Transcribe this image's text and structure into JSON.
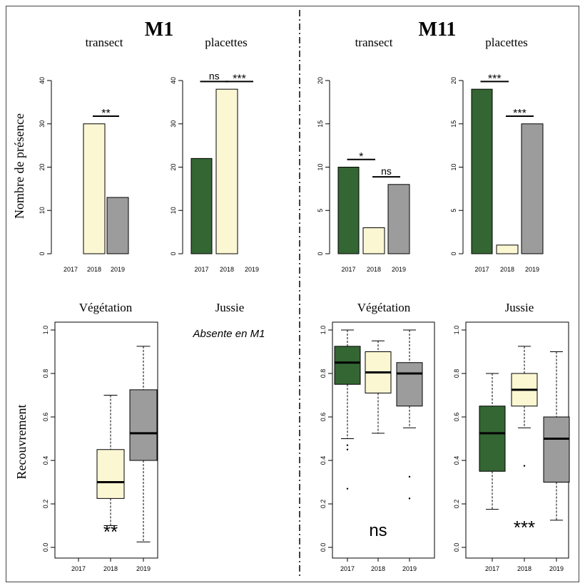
{
  "colors": {
    "2017": "#336633",
    "2018": "#fbf7d3",
    "2019": "#9c9c9c"
  },
  "figure": {
    "site_titles": [
      "M1",
      "M11"
    ],
    "row1_ylabel": "Nombre de présence",
    "row2_ylabel": "Recouvrement",
    "absent_note": "Absente en M1"
  },
  "chart_data": [
    {
      "id": "m1-transect",
      "type": "bar",
      "title": "transect",
      "categories": [
        "2017",
        "2018",
        "2019"
      ],
      "values": [
        0,
        30,
        13
      ],
      "ylim": [
        0,
        40
      ],
      "yticks": [
        0,
        10,
        20,
        30,
        40
      ],
      "significance": [
        {
          "from": 1,
          "to": 2,
          "label": "**"
        }
      ]
    },
    {
      "id": "m1-placettes",
      "type": "bar",
      "title": "placettes",
      "categories": [
        "2017",
        "2018",
        "2019"
      ],
      "values": [
        22,
        38,
        0
      ],
      "ylim": [
        0,
        40
      ],
      "yticks": [
        0,
        10,
        20,
        30,
        40
      ],
      "significance": [
        {
          "from": 0,
          "to": 1,
          "label": "ns"
        },
        {
          "from": 1,
          "to": 2,
          "label": "***"
        }
      ]
    },
    {
      "id": "m11-transect",
      "type": "bar",
      "title": "transect",
      "categories": [
        "2017",
        "2018",
        "2019"
      ],
      "values": [
        10,
        3,
        8
      ],
      "ylim": [
        0,
        20
      ],
      "yticks": [
        0,
        5,
        10,
        15,
        20
      ],
      "significance": [
        {
          "from": 0,
          "to": 1,
          "label": "*"
        },
        {
          "from": 1,
          "to": 2,
          "label": "ns"
        }
      ]
    },
    {
      "id": "m11-placettes",
      "type": "bar",
      "title": "placettes",
      "categories": [
        "2017",
        "2018",
        "2019"
      ],
      "values": [
        19,
        1,
        15
      ],
      "ylim": [
        0,
        20
      ],
      "yticks": [
        0,
        5,
        10,
        15,
        20
      ],
      "significance": [
        {
          "from": 0,
          "to": 1,
          "label": "***"
        },
        {
          "from": 1,
          "to": 2,
          "label": "***"
        }
      ]
    },
    {
      "id": "m1-vegetation",
      "type": "box",
      "title": "Végétation",
      "categories": [
        "2017",
        "2018",
        "2019"
      ],
      "ylim": [
        0,
        1
      ],
      "yticks": [
        0.0,
        0.2,
        0.4,
        0.6,
        0.8,
        1.0
      ],
      "ytick_labels": [
        "0.0",
        "0.2",
        "0.4",
        "0.6",
        "0.8",
        "1.0"
      ],
      "boxes": [
        null,
        {
          "low": 0.1,
          "q1": 0.225,
          "median": 0.3,
          "q3": 0.45,
          "high": 0.7,
          "outliers": []
        },
        {
          "low": 0.025,
          "q1": 0.4,
          "median": 0.525,
          "q3": 0.725,
          "high": 0.925,
          "outliers": []
        }
      ],
      "annotation": "**"
    },
    {
      "id": "m11-vegetation",
      "type": "box",
      "title": "Végétation",
      "categories": [
        "2017",
        "2018",
        "2019"
      ],
      "ylim": [
        0,
        1
      ],
      "yticks": [
        0.0,
        0.2,
        0.4,
        0.6,
        0.8,
        1.0
      ],
      "ytick_labels": [
        "0.0",
        "0.2",
        "0.4",
        "0.6",
        "0.8",
        "1.0"
      ],
      "boxes": [
        {
          "low": 0.5,
          "q1": 0.75,
          "median": 0.85,
          "q3": 0.925,
          "high": 1.0,
          "outliers": [
            0.47,
            0.45,
            0.27
          ]
        },
        {
          "low": 0.525,
          "q1": 0.71,
          "median": 0.805,
          "q3": 0.9,
          "high": 0.95,
          "outliers": []
        },
        {
          "low": 0.55,
          "q1": 0.65,
          "median": 0.8,
          "q3": 0.85,
          "high": 1.0,
          "outliers": [
            0.325,
            0.225
          ]
        }
      ],
      "annotation": "ns"
    },
    {
      "id": "m11-jussie",
      "type": "box",
      "title": "Jussie",
      "categories": [
        "2017",
        "2018",
        "2019"
      ],
      "ylim": [
        0,
        1
      ],
      "yticks": [
        0.0,
        0.2,
        0.4,
        0.6,
        0.8,
        1.0
      ],
      "ytick_labels": [
        "0.0",
        "0.2",
        "0.4",
        "0.6",
        "0.8",
        "1.0"
      ],
      "boxes": [
        {
          "low": 0.175,
          "q1": 0.35,
          "median": 0.525,
          "q3": 0.65,
          "high": 0.8,
          "outliers": []
        },
        {
          "low": 0.55,
          "q1": 0.65,
          "median": 0.725,
          "q3": 0.8,
          "high": 0.925,
          "outliers": [
            0.375
          ]
        },
        {
          "low": 0.125,
          "q1": 0.3,
          "median": 0.5,
          "q3": 0.6,
          "high": 0.9,
          "outliers": []
        }
      ],
      "annotation": "***"
    },
    {
      "id": "m1-jussie",
      "type": "empty",
      "title": "Jussie"
    }
  ]
}
